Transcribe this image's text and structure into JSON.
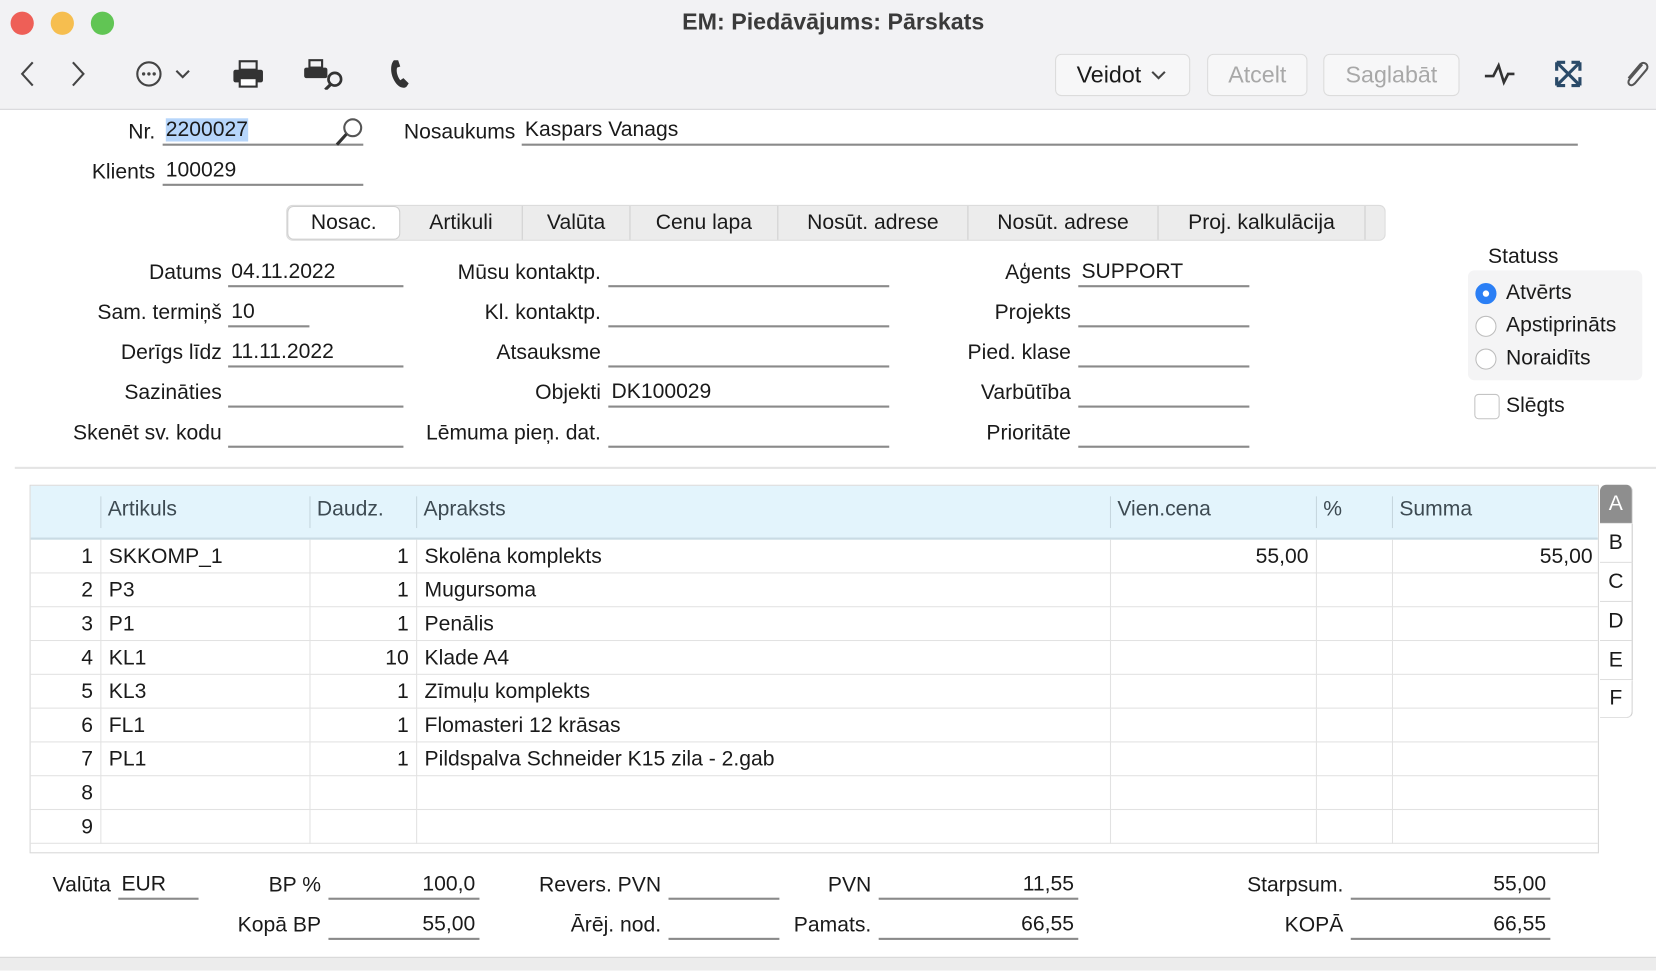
{
  "window": {
    "title": "EM: Piedāvājums: Pārskats"
  },
  "toolbar": {
    "veidot": "Veidot",
    "atcelt": "Atcelt",
    "saglabat": "Saglabāt"
  },
  "header": {
    "nr_label": "Nr.",
    "nr_value": "2200027",
    "nosaukums_label": "Nosaukums",
    "nosaukums_value": "Kaspars Vanags",
    "klients_label": "Klients",
    "klients_value": "100029"
  },
  "tabs": [
    "Nosac.",
    "Artikuli",
    "Valūta",
    "Cenu lapa",
    "Nosūt. adrese",
    "Nosūt. adrese",
    "Proj. kalkulācija"
  ],
  "form": {
    "col1": [
      {
        "label": "Datums",
        "value": "04.11.2022"
      },
      {
        "label": "Sam. termiņš",
        "value": "10"
      },
      {
        "label": "Derīgs līdz",
        "value": "11.11.2022"
      },
      {
        "label": "Sazināties",
        "value": ""
      },
      {
        "label": "Skenēt sv. kodu",
        "value": ""
      }
    ],
    "col2": [
      {
        "label": "Mūsu kontaktp.",
        "value": ""
      },
      {
        "label": "Kl. kontaktp.",
        "value": ""
      },
      {
        "label": "Atsauksme",
        "value": ""
      },
      {
        "label": "Objekti",
        "value": "DK100029"
      },
      {
        "label": "Lēmuma pieņ. dat.",
        "value": ""
      }
    ],
    "col3": [
      {
        "label": "Aģents",
        "value": "SUPPORT"
      },
      {
        "label": "Projekts",
        "value": ""
      },
      {
        "label": "Pied. klase",
        "value": ""
      },
      {
        "label": "Varbūtība",
        "value": ""
      },
      {
        "label": "Prioritāte",
        "value": ""
      }
    ]
  },
  "status": {
    "title": "Statuss",
    "options": [
      "Atvērts",
      "Apstiprināts",
      "Noraidīts"
    ],
    "selected": "Atvērts",
    "closed_label": "Slēgts",
    "closed": false
  },
  "table": {
    "columns": [
      "",
      "Artikuls",
      "Daudz.",
      "Apraksts",
      "Vien.cena",
      "%",
      "Summa"
    ],
    "rows": [
      [
        "1",
        "SKKOMP_1",
        "1",
        "Skolēna komplekts",
        "55,00",
        "",
        "55,00"
      ],
      [
        "2",
        "P3",
        "1",
        "Mugursoma",
        "",
        "",
        ""
      ],
      [
        "3",
        "P1",
        "1",
        "Penālis",
        "",
        "",
        ""
      ],
      [
        "4",
        "KL1",
        "10",
        "Klade A4",
        "",
        "",
        ""
      ],
      [
        "5",
        "KL3",
        "1",
        "Zīmuļu komplekts",
        "",
        "",
        ""
      ],
      [
        "6",
        "FL1",
        "1",
        "Flomasteri 12 krāsas",
        "",
        "",
        ""
      ],
      [
        "7",
        "PL1",
        "1",
        "Pildspalva Schneider K15 zila - 2.gab",
        "",
        "",
        ""
      ],
      [
        "8",
        "",
        "",
        "",
        "",
        "",
        ""
      ],
      [
        "9",
        "",
        "",
        "",
        "",
        "",
        ""
      ]
    ],
    "side_tabs": [
      "A",
      "B",
      "C",
      "D",
      "E",
      "F"
    ],
    "active_side_tab": "A"
  },
  "footer": {
    "valuta_label": "Valūta",
    "valuta": "EUR",
    "bp_label": "BP %",
    "bp": "100,0",
    "kopa_bp_label": "Kopā BP",
    "kopa_bp": "55,00",
    "revers_label": "Revers. PVN",
    "revers": "",
    "arej_label": "Ārēj. nod.",
    "arej": "",
    "pvn_label": "PVN",
    "pvn": "11,55",
    "pamats_label": "Pamats.",
    "pamats": "66,55",
    "starpsum_label": "Starpsum.",
    "starpsum": "55,00",
    "kopa_label": "KOPĀ",
    "kopa": "66,55"
  },
  "colors": {
    "accent": "#2b7ff5",
    "header_bg": "#e3f4fc",
    "selection": "#b7d6fb"
  }
}
